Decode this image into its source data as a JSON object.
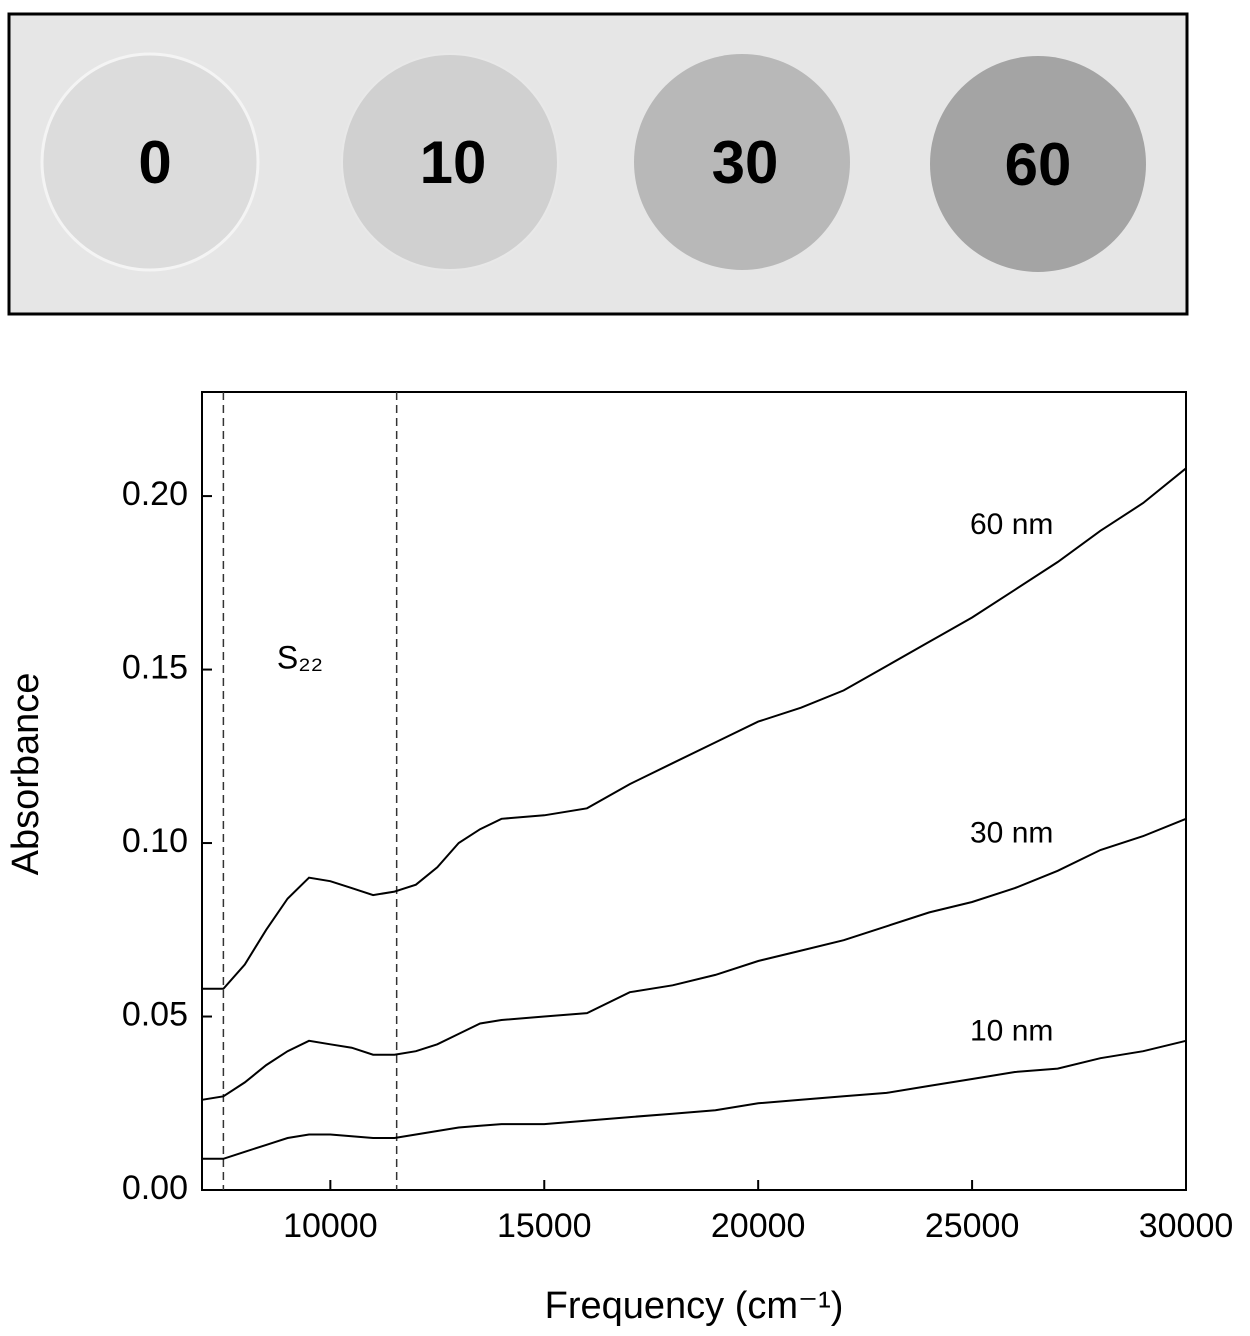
{
  "photo": {
    "labels": [
      "0",
      "10",
      "30",
      "60"
    ]
  },
  "chart_data": {
    "type": "line",
    "xlabel": "Frequency (cm⁻¹)",
    "ylabel": "Absorbance",
    "annotation": "S₂₂",
    "x": [
      7000,
      7500,
      8000,
      8500,
      9000,
      9500,
      10000,
      10500,
      11000,
      11500,
      12000,
      12500,
      13000,
      13500,
      14000,
      15000,
      16000,
      17000,
      18000,
      19000,
      20000,
      21000,
      22000,
      23000,
      24000,
      25000,
      26000,
      27000,
      28000,
      29000,
      30000
    ],
    "series": [
      {
        "name": "60 nm",
        "color": "#000000",
        "values": [
          0.058,
          0.058,
          0.065,
          0.075,
          0.084,
          0.09,
          0.089,
          0.087,
          0.085,
          0.086,
          0.088,
          0.093,
          0.1,
          0.104,
          0.107,
          0.108,
          0.11,
          0.117,
          0.123,
          0.129,
          0.135,
          0.139,
          0.144,
          0.151,
          0.158,
          0.165,
          0.173,
          0.181,
          0.19,
          0.198,
          0.208
        ]
      },
      {
        "name": "30 nm",
        "color": "#000000",
        "values": [
          0.026,
          0.027,
          0.031,
          0.036,
          0.04,
          0.043,
          0.042,
          0.041,
          0.039,
          0.039,
          0.04,
          0.042,
          0.045,
          0.048,
          0.049,
          0.05,
          0.051,
          0.057,
          0.059,
          0.062,
          0.066,
          0.069,
          0.072,
          0.076,
          0.08,
          0.083,
          0.087,
          0.092,
          0.098,
          0.102,
          0.107
        ]
      },
      {
        "name": "10 nm",
        "color": "#000000",
        "values": [
          0.009,
          0.009,
          0.011,
          0.013,
          0.015,
          0.016,
          0.016,
          0.0155,
          0.015,
          0.015,
          0.016,
          0.017,
          0.018,
          0.0185,
          0.019,
          0.019,
          0.02,
          0.021,
          0.022,
          0.023,
          0.025,
          0.026,
          0.027,
          0.028,
          0.03,
          0.032,
          0.034,
          0.035,
          0.038,
          0.04,
          0.043
        ]
      }
    ],
    "reference_lines": [
      7500,
      11550
    ],
    "xlim": [
      7000,
      30000
    ],
    "xticks": [
      10000,
      15000,
      20000,
      25000,
      30000
    ],
    "ylim": [
      0,
      0.23
    ],
    "yticks": [
      {
        "value": 0,
        "label": "0.00"
      },
      {
        "value": 0.05,
        "label": "0.05"
      },
      {
        "value": 0.1,
        "label": "0.10"
      },
      {
        "value": 0.15,
        "label": "0.15"
      },
      {
        "value": 0.2,
        "label": "0.20"
      }
    ],
    "grid": false
  }
}
